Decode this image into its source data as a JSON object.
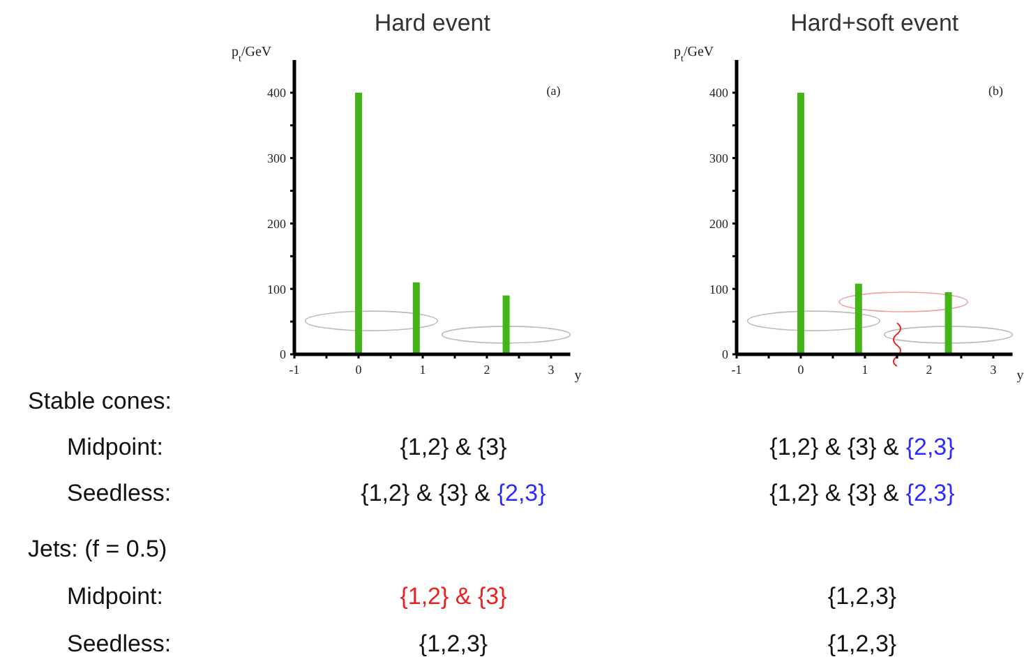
{
  "chart_data": [
    {
      "type": "bar",
      "title": "Hard event",
      "xlabel": "y",
      "ylabel": "p$_{t}$/GeV",
      "x": [
        0,
        0.9,
        2.3
      ],
      "values": [
        400,
        110,
        90
      ],
      "color": "#44b518",
      "xlim": [
        -1,
        3.3
      ],
      "ylim": [
        0,
        450
      ],
      "xticks": [
        -1,
        {
          "value": -0.5,
          "label": null
        },
        0,
        {
          "value": 0.5,
          "label": null
        },
        1,
        {
          "value": 1.5,
          "label": null
        },
        2,
        {
          "value": 2.5,
          "label": null
        },
        3
      ],
      "yticks": [
        0,
        {
          "value": 50,
          "label": null
        },
        100,
        {
          "value": 150,
          "label": null
        },
        200,
        {
          "value": 250,
          "label": null
        },
        300,
        {
          "value": 350,
          "label": null
        },
        400
      ],
      "annotations": [
        "(a)"
      ]
    },
    {
      "type": "bar",
      "title": "Hard+soft event",
      "xlabel": "y",
      "ylabel": "p$_{t}$/GeV",
      "x": [
        0,
        0.9,
        2.3
      ],
      "values": [
        400,
        108,
        95
      ],
      "color": "#44b518",
      "xlim": [
        -1,
        3.3
      ],
      "ylim": [
        0,
        450
      ],
      "xticks": [
        -1,
        {
          "value": -0.5,
          "label": null
        },
        0,
        {
          "value": 0.5,
          "label": null
        },
        1,
        {
          "value": 1.5,
          "label": null
        },
        2,
        {
          "value": 2.5,
          "label": null
        },
        3
      ],
      "yticks": [
        0,
        {
          "value": 50,
          "label": null
        },
        100,
        {
          "value": 150,
          "label": null
        },
        200,
        {
          "value": 250,
          "label": null
        },
        300,
        {
          "value": 350,
          "label": null
        },
        400
      ],
      "annotations": [
        "(b)"
      ]
    },
    {
      "type": "other",
      "annotations": [
        "Stable cones:",
        "Midpoint:",
        "{1,2} & {3}",
        "{1,2} & {3} &",
        "{2,3}",
        "Seedless:",
        "{1,2} & {3} &",
        "{2,3}",
        "{1,2} & {3} &",
        "{2,3}",
        "Jets: (f = 0.5)",
        "Midpoint:",
        "{1,2} & {3}",
        "{1,2,3}",
        "Seedless:",
        "{1,2,3}",
        "{1,2,3}"
      ],
      "colors": [
        "#111111",
        "#111111",
        "#111111",
        "#111111",
        "#2b2bff",
        "#111111",
        "#111111",
        "#2b2bff",
        "#111111",
        "#2b2bff",
        "#111111",
        "#111111",
        "#e8231e",
        "#111111",
        "#111111",
        "#111111",
        "#111111"
      ]
    }
  ]
}
